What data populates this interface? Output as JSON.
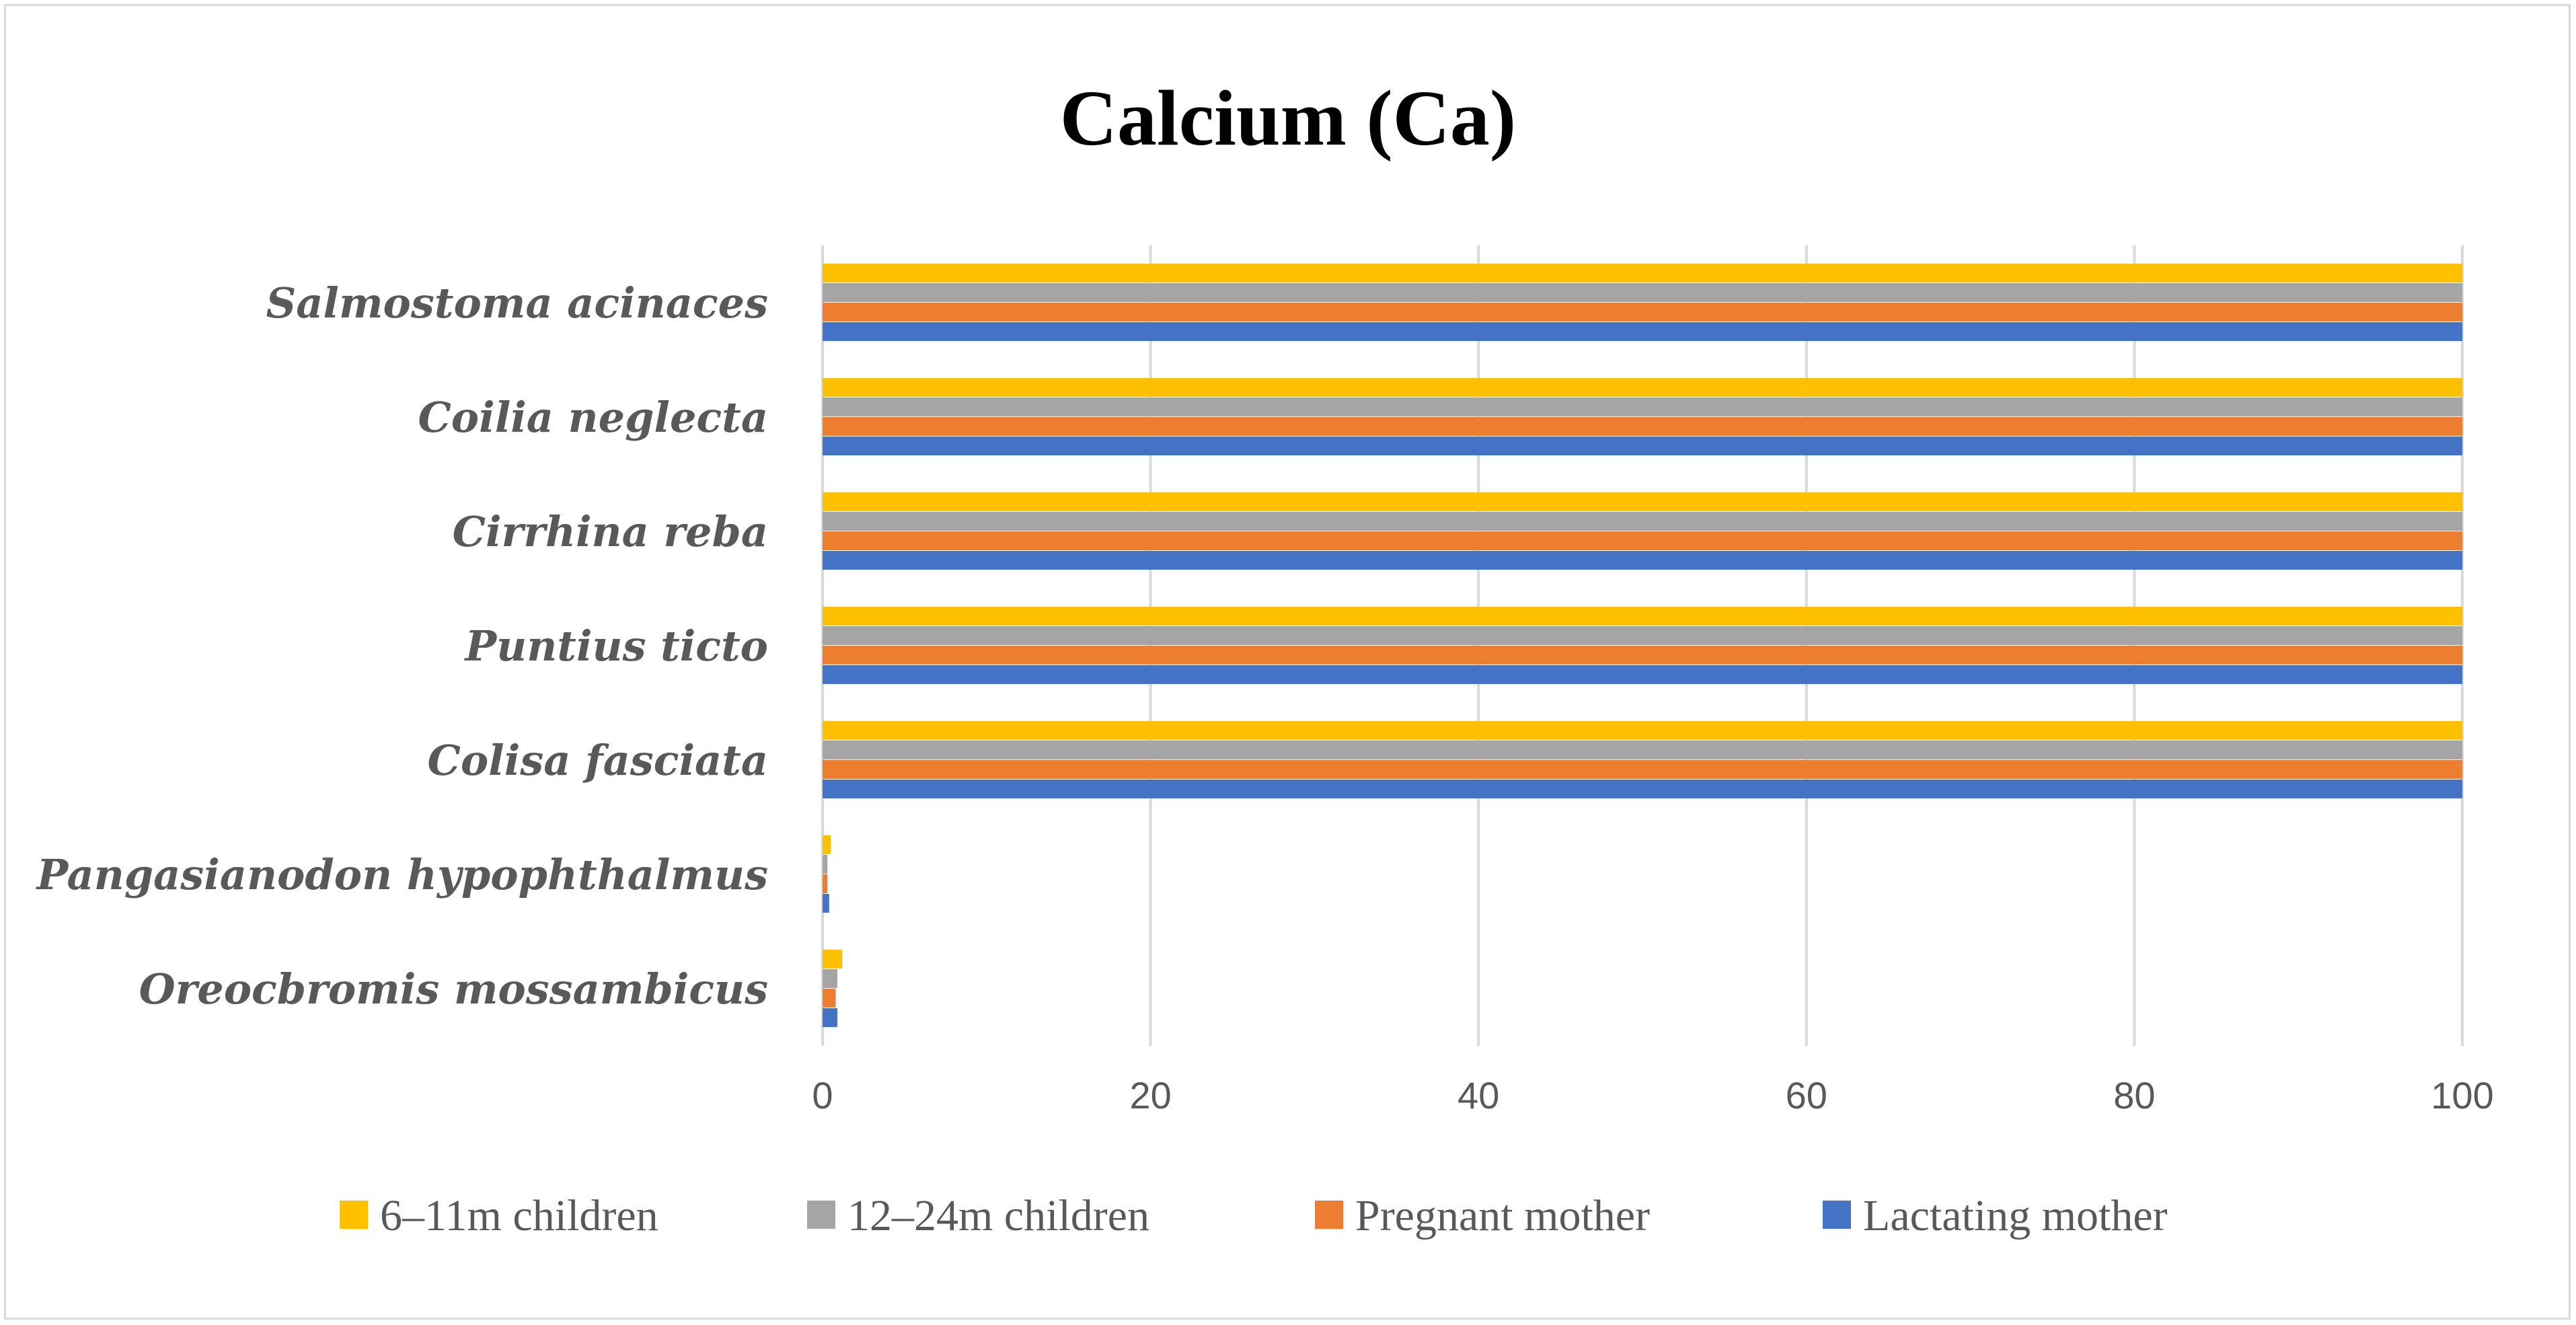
{
  "chart_data": {
    "type": "bar",
    "orientation": "horizontal",
    "title": "Calcium (Ca)",
    "xlabel": "",
    "ylabel": "",
    "xlim": [
      0,
      100
    ],
    "xticks": [
      0,
      20,
      40,
      60,
      80,
      100
    ],
    "grid": "vertical",
    "legend_position": "bottom",
    "categories": [
      "Salmostoma acinaces",
      "Coilia neglecta",
      "Cirrhina reba",
      "Puntius ticto",
      "Colisa fasciata",
      "Pangasianodon hypophthalmus",
      "Oreocbromis mossambicus"
    ],
    "series": [
      {
        "name": "6–11m children",
        "color": "#FFC000",
        "values": [
          100,
          100,
          100,
          100,
          100,
          0.5,
          1.2
        ]
      },
      {
        "name": "12–24m children",
        "color": "#A5A5A5",
        "values": [
          100,
          100,
          100,
          100,
          100,
          0.3,
          0.9
        ]
      },
      {
        "name": "Pregnant mother",
        "color": "#ED7D31",
        "values": [
          100,
          100,
          100,
          100,
          100,
          0.3,
          0.8
        ]
      },
      {
        "name": "Lactating mother",
        "color": "#4472C4",
        "values": [
          100,
          100,
          100,
          100,
          100,
          0.4,
          0.9
        ]
      }
    ]
  }
}
